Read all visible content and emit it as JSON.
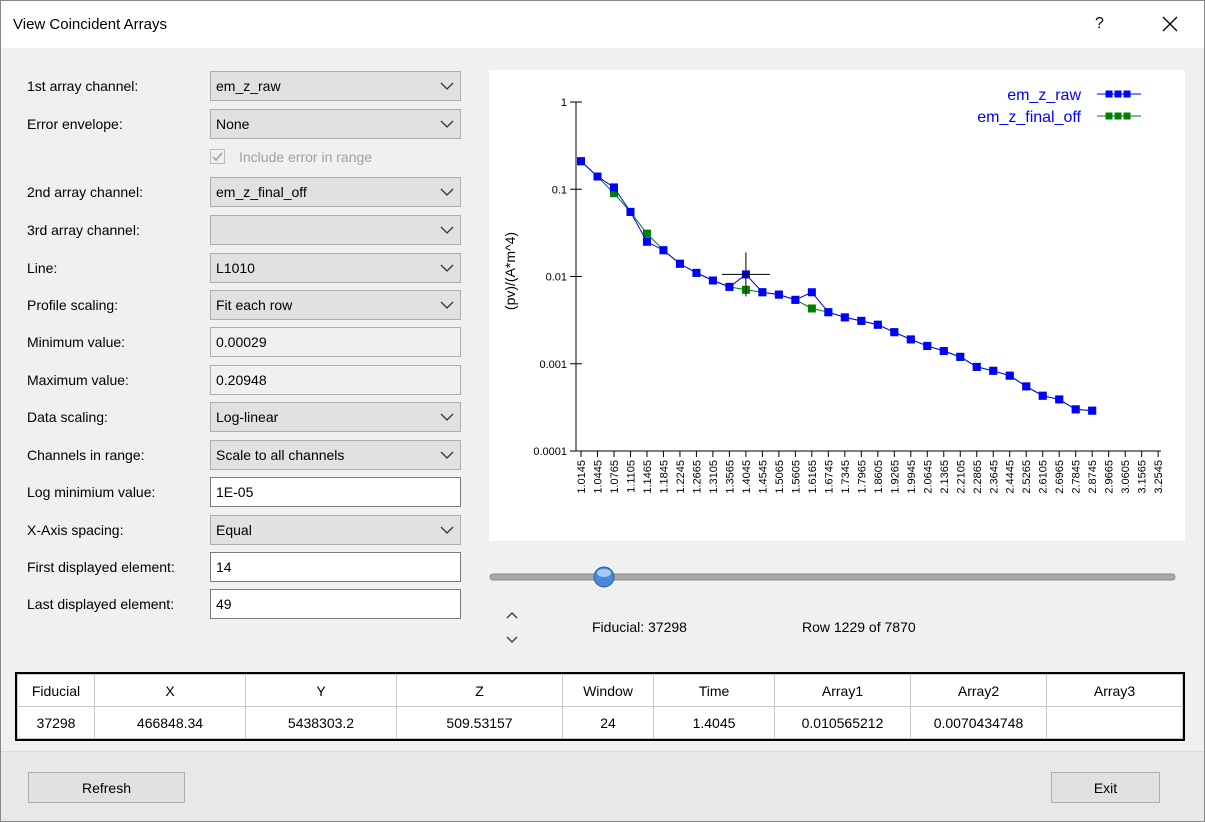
{
  "window": {
    "title": "View Coincident Arrays",
    "help": "?"
  },
  "form": {
    "fields": [
      {
        "label": "1st array channel:",
        "value": "em_z_raw",
        "kind": "dropdown"
      },
      {
        "label": "Error envelope:",
        "value": "None",
        "kind": "dropdown"
      },
      {
        "label": "2nd array channel:",
        "value": "em_z_final_off",
        "kind": "dropdown"
      },
      {
        "label": "3rd array channel:",
        "kind": "dropdown"
      },
      {
        "label": "Line:",
        "value": "L1010",
        "kind": "dropdown"
      },
      {
        "label": "Profile scaling:",
        "value": "Fit each row",
        "kind": "dropdown"
      },
      {
        "label": "Minimum value:",
        "value": "0.00029",
        "kind": "readonly"
      },
      {
        "label": "Maximum value:",
        "value": "0.20948",
        "kind": "readonly"
      },
      {
        "label": "Data scaling:",
        "value": "Log-linear",
        "kind": "dropdown"
      },
      {
        "label": "Channels in range:",
        "value": "Scale to all channels",
        "kind": "dropdown"
      },
      {
        "label": "Log minimium value:",
        "value": "1E-05",
        "kind": "text"
      },
      {
        "label": "X-Axis spacing:",
        "value": "Equal",
        "kind": "dropdown"
      },
      {
        "label": "First displayed element:",
        "value": "14",
        "kind": "text"
      },
      {
        "label": "Last displayed element:",
        "value": "49",
        "kind": "text"
      }
    ],
    "checkbox": {
      "label": "Include error in range",
      "checked": true
    }
  },
  "chart_data": {
    "type": "line",
    "y_label": "(pv)/(A*m^4)",
    "log_y": true,
    "legend": "top-right",
    "categories": [
      "1.0145",
      "1.0445",
      "1.0765",
      "1.1105",
      "1.1465",
      "1.1845",
      "1.2245",
      "1.2665",
      "1.3105",
      "1.3565",
      "1.4045",
      "1.4545",
      "1.5065",
      "1.5605",
      "1.6165",
      "1.6745",
      "1.7345",
      "1.7965",
      "1.8605",
      "1.9265",
      "1.9945",
      "2.0645",
      "2.1365",
      "2.2105",
      "2.2865",
      "2.3645",
      "2.4445",
      "2.5265",
      "2.6105",
      "2.6965",
      "2.7845",
      "2.8745",
      "2.9665",
      "3.0605",
      "3.1565",
      "3.2545"
    ],
    "series": [
      {
        "name": "em_z_raw",
        "color": "#0000ff",
        "values": [
          0.20948,
          0.14,
          0.105,
          0.055,
          0.025,
          0.02,
          0.014,
          0.011,
          0.009,
          0.0076,
          0.010565212,
          0.0066,
          0.0062,
          0.0054,
          0.0066,
          0.0039,
          0.0034,
          0.0031,
          0.0028,
          0.0023,
          0.0019,
          0.0016,
          0.0014,
          0.0012,
          0.00092,
          0.00083,
          0.00073,
          0.00055,
          0.00043,
          0.00039,
          0.0003,
          0.00029,
          null,
          null,
          null,
          null
        ]
      },
      {
        "name": "em_z_final_off",
        "color": "#008000",
        "values": [
          0.20948,
          0.14,
          0.09,
          0.055,
          0.031,
          0.02,
          0.014,
          0.011,
          0.009,
          0.0076,
          0.0070434748,
          0.0066,
          0.0062,
          0.0054,
          0.0043,
          0.0039,
          0.0034,
          0.0031,
          0.0028,
          0.0023,
          0.0019,
          0.0016,
          0.0014,
          0.0012,
          0.00092,
          0.00083,
          0.00073,
          0.00055,
          0.00043,
          0.00039,
          0.0003,
          0.00029,
          null,
          null,
          null,
          null
        ]
      }
    ],
    "ylim": [
      0.0001,
      1
    ],
    "yticks": [
      1,
      0.1,
      0.01,
      0.001,
      0.0001
    ]
  },
  "status": {
    "fiducial": "Fiducial: 37298",
    "row": "Row 1229 of 7870"
  },
  "table": {
    "headers": [
      "Fiducial",
      "X",
      "Y",
      "Z",
      "Window",
      "Time",
      "Array1",
      "Array2",
      "Array3"
    ],
    "rows": [
      [
        "37298",
        "466848.34",
        "5438303.2",
        "509.53157",
        "24",
        "1.4045",
        "0.010565212",
        "0.0070434748"
      ]
    ]
  },
  "buttons": {
    "refresh": "Refresh",
    "exit": "Exit"
  }
}
